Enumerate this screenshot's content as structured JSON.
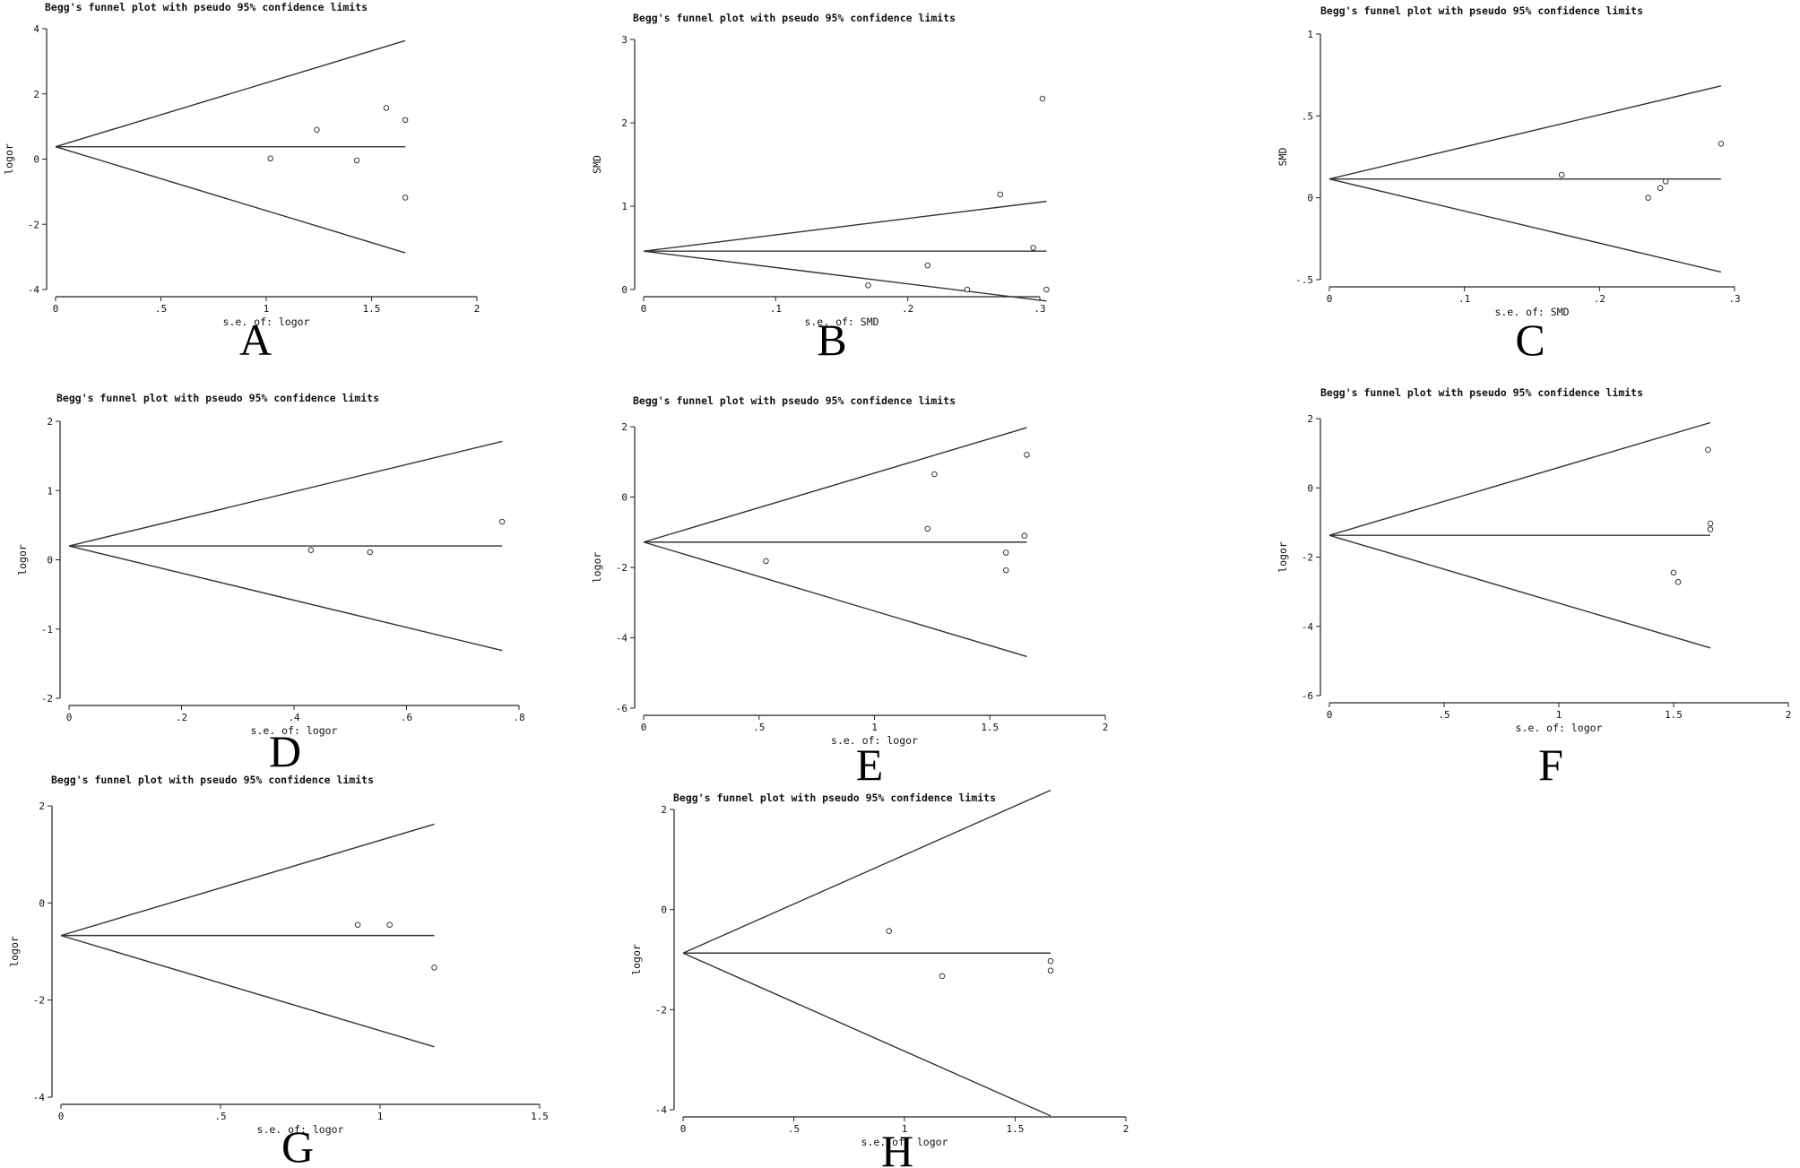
{
  "chart_data": [
    {
      "type": "scatter",
      "panel": "A",
      "title": "Begg's funnel plot with pseudo 95% confidence limits",
      "xlabel": "s.e. of: logor",
      "ylabel": "logor",
      "xlim": [
        0,
        2
      ],
      "ylim": [
        -4,
        4
      ],
      "xticks": [
        0,
        0.5,
        1,
        1.5,
        2
      ],
      "xtick_labels": [
        "0",
        ".5",
        "1",
        "1.5",
        "2"
      ],
      "yticks": [
        -4,
        -2,
        0,
        2,
        4
      ],
      "ytick_labels": [
        "-4",
        "-2",
        "0",
        "2",
        "4"
      ],
      "pooled": 0.38,
      "max_se": 1.66,
      "points": [
        [
          1.02,
          0.02
        ],
        [
          1.24,
          0.9
        ],
        [
          1.43,
          -0.04
        ],
        [
          1.57,
          1.57
        ],
        [
          1.66,
          1.2
        ],
        [
          1.66,
          -1.18
        ]
      ]
    },
    {
      "type": "scatter",
      "panel": "B",
      "title": "Begg's funnel plot with pseudo 95% confidence limits",
      "xlabel": "s.e. of: SMD",
      "ylabel": "SMD",
      "xlim": [
        0,
        0.3
      ],
      "ylim": [
        0,
        3
      ],
      "xticks": [
        0,
        0.1,
        0.2,
        0.3
      ],
      "xtick_labels": [
        "0",
        ".1",
        ".2",
        ".3"
      ],
      "yticks": [
        0,
        1,
        2,
        3
      ],
      "ytick_labels": [
        "0",
        "1",
        "2",
        "3"
      ],
      "pooled": 0.46,
      "max_se": 0.305,
      "points": [
        [
          0.17,
          0.05
        ],
        [
          0.215,
          0.29
        ],
        [
          0.245,
          0.0
        ],
        [
          0.27,
          1.14
        ],
        [
          0.295,
          0.5
        ],
        [
          0.302,
          2.29
        ],
        [
          0.305,
          0.0
        ]
      ]
    },
    {
      "type": "scatter",
      "panel": "C",
      "title": "Begg's funnel plot with pseudo 95% confidence limits",
      "xlabel": "s.e. of: SMD",
      "ylabel": "SMD",
      "xlim": [
        0,
        0.3
      ],
      "ylim": [
        -0.5,
        1
      ],
      "xticks": [
        0,
        0.1,
        0.2,
        0.3
      ],
      "xtick_labels": [
        "0",
        ".1",
        ".2",
        ".3"
      ],
      "yticks": [
        -0.5,
        0,
        0.5,
        1
      ],
      "ytick_labels": [
        "-.5",
        "0",
        ".5",
        "1"
      ],
      "pooled": 0.115,
      "max_se": 0.29,
      "points": [
        [
          0.172,
          0.14
        ],
        [
          0.236,
          0.0
        ],
        [
          0.245,
          0.06
        ],
        [
          0.249,
          0.1
        ],
        [
          0.29,
          0.33
        ]
      ]
    },
    {
      "type": "scatter",
      "panel": "D",
      "title": "Begg's funnel plot with pseudo 95% confidence limits",
      "xlabel": "s.e. of: logor",
      "ylabel": "logor",
      "xlim": [
        0,
        0.8
      ],
      "ylim": [
        -2,
        2
      ],
      "xticks": [
        0,
        0.2,
        0.4,
        0.6,
        0.8
      ],
      "xtick_labels": [
        "0",
        ".2",
        ".4",
        ".6",
        ".8"
      ],
      "yticks": [
        -2,
        -1,
        0,
        1,
        2
      ],
      "ytick_labels": [
        "-2",
        "-1",
        "0",
        "1",
        "2"
      ],
      "pooled": 0.2,
      "max_se": 0.77,
      "points": [
        [
          0.43,
          0.14
        ],
        [
          0.535,
          0.11
        ],
        [
          0.77,
          0.55
        ]
      ]
    },
    {
      "type": "scatter",
      "panel": "E",
      "title": "Begg's funnel plot with pseudo 95% confidence limits",
      "xlabel": "s.e. of: logor",
      "ylabel": "logor",
      "xlim": [
        0,
        2
      ],
      "ylim": [
        -6,
        2
      ],
      "xticks": [
        0,
        0.5,
        1,
        1.5,
        2
      ],
      "xtick_labels": [
        "0",
        ".5",
        "1",
        "1.5",
        "2"
      ],
      "yticks": [
        -6,
        -4,
        -2,
        0,
        2
      ],
      "ytick_labels": [
        "-6",
        "-4",
        "-2",
        "0",
        "2"
      ],
      "pooled": -1.28,
      "max_se": 1.66,
      "points": [
        [
          0.53,
          -1.82
        ],
        [
          1.23,
          -0.9
        ],
        [
          1.26,
          0.65
        ],
        [
          1.57,
          -1.58
        ],
        [
          1.57,
          -2.08
        ],
        [
          1.65,
          -1.1
        ],
        [
          1.66,
          1.2
        ]
      ]
    },
    {
      "type": "scatter",
      "panel": "F",
      "title": "Begg's funnel plot with pseudo 95% confidence limits",
      "xlabel": "s.e. of: logor",
      "ylabel": "logor",
      "xlim": [
        0,
        2
      ],
      "ylim": [
        -6,
        2
      ],
      "xticks": [
        0,
        0.5,
        1,
        1.5,
        2
      ],
      "xtick_labels": [
        "0",
        ".5",
        "1",
        "1.5",
        "2"
      ],
      "yticks": [
        -6,
        -4,
        -2,
        0,
        2
      ],
      "ytick_labels": [
        "-6",
        "-4",
        "-2",
        "0",
        "2"
      ],
      "pooled": -1.37,
      "max_se": 1.66,
      "points": [
        [
          1.5,
          -2.45
        ],
        [
          1.52,
          -2.72
        ],
        [
          1.65,
          1.1
        ],
        [
          1.66,
          -1.03
        ],
        [
          1.66,
          -1.2
        ]
      ]
    },
    {
      "type": "scatter",
      "panel": "G",
      "title": "Begg's funnel plot with pseudo 95% confidence limits",
      "xlabel": "s.e. of: logor",
      "ylabel": "logor",
      "xlim": [
        0,
        1.5
      ],
      "ylim": [
        -4,
        2
      ],
      "xticks": [
        0,
        0.5,
        1,
        1.5
      ],
      "xtick_labels": [
        "0",
        ".5",
        "1",
        "1.5"
      ],
      "yticks": [
        -4,
        -2,
        0,
        2
      ],
      "ytick_labels": [
        "-4",
        "-2",
        "0",
        "2"
      ],
      "pooled": -0.67,
      "max_se": 1.17,
      "points": [
        [
          0.93,
          -0.45
        ],
        [
          1.03,
          -0.45
        ],
        [
          1.17,
          -1.33
        ]
      ]
    },
    {
      "type": "scatter",
      "panel": "H",
      "title": "Begg's funnel plot with pseudo 95% confidence limits",
      "xlabel": "s.e. of: logor",
      "ylabel": "logor",
      "xlim": [
        0,
        2
      ],
      "ylim": [
        -4,
        2
      ],
      "xticks": [
        0,
        0.5,
        1,
        1.5,
        2
      ],
      "xtick_labels": [
        "0",
        ".5",
        "1",
        "1.5",
        "2"
      ],
      "yticks": [
        -4,
        -2,
        0,
        2
      ],
      "ytick_labels": [
        "-4",
        "-2",
        "0",
        "2"
      ],
      "pooled": -0.87,
      "max_se": 1.66,
      "points": [
        [
          0.93,
          -0.43
        ],
        [
          1.17,
          -1.33
        ],
        [
          1.66,
          -1.03
        ],
        [
          1.66,
          -1.22
        ]
      ]
    }
  ]
}
